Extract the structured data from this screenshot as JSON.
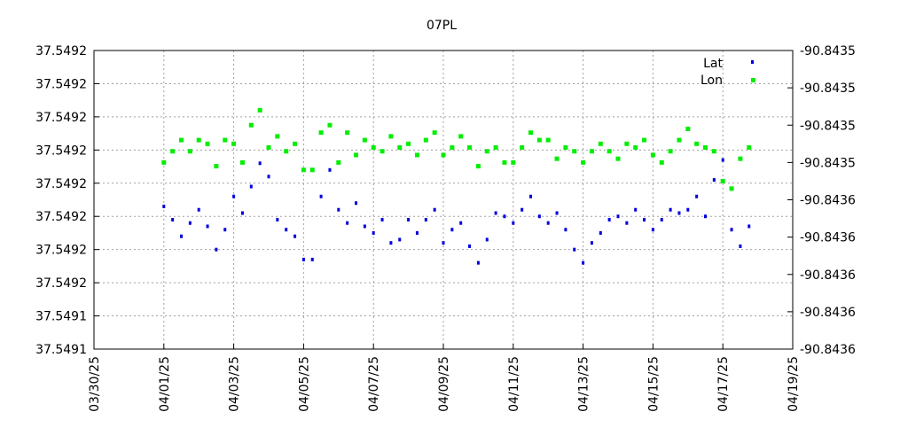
{
  "chart_data": {
    "type": "scatter",
    "title": "07PL",
    "xlabel": "",
    "ylabel": "",
    "x_tick_labels": [
      "03/30/25",
      "04/01/25",
      "04/03/25",
      "04/05/25",
      "04/07/25",
      "04/09/25",
      "04/11/25",
      "04/13/25",
      "04/15/25",
      "04/17/25",
      "04/19/25"
    ],
    "x_range": [
      "03/30/25",
      "04/19/25"
    ],
    "y_left_tick_labels": [
      "37.5491",
      "37.5491",
      "37.5492",
      "37.5492",
      "37.5492",
      "37.5492",
      "37.5492",
      "37.5492",
      "37.5492",
      "37.5492"
    ],
    "y_right_tick_labels": [
      "-90.8436",
      "-90.8436",
      "-90.8436",
      "-90.8436",
      "-90.8436",
      "-90.8435",
      "-90.8435",
      "-90.8435",
      "-90.8435"
    ],
    "y_left_range_index": [
      0,
      9
    ],
    "y_right_range_index": [
      0,
      8
    ],
    "grid": true,
    "legend_placement": "top-right",
    "series": [
      {
        "name": "Lat",
        "axis": "left",
        "color": "#0000e0",
        "points": [
          [
            "04/01/25 00:00",
            4.3
          ],
          [
            "04/01/25 06:00",
            3.9
          ],
          [
            "04/01/25 12:00",
            3.4
          ],
          [
            "04/01/25 18:00",
            3.8
          ],
          [
            "04/02/25 00:00",
            4.2
          ],
          [
            "04/02/25 06:00",
            3.7
          ],
          [
            "04/02/25 12:00",
            3.0
          ],
          [
            "04/02/25 18:00",
            3.6
          ],
          [
            "04/03/25 00:00",
            4.6
          ],
          [
            "04/03/25 06:00",
            4.1
          ],
          [
            "04/03/25 12:00",
            4.9
          ],
          [
            "04/03/25 18:00",
            5.6
          ],
          [
            "04/04/25 00:00",
            5.2
          ],
          [
            "04/04/25 06:00",
            3.9
          ],
          [
            "04/04/25 12:00",
            3.6
          ],
          [
            "04/04/25 18:00",
            3.4
          ],
          [
            "04/05/25 00:00",
            2.7
          ],
          [
            "04/05/25 06:00",
            2.7
          ],
          [
            "04/05/25 12:00",
            4.6
          ],
          [
            "04/05/25 18:00",
            5.4
          ],
          [
            "04/06/25 00:00",
            4.2
          ],
          [
            "04/06/25 06:00",
            3.8
          ],
          [
            "04/06/25 12:00",
            4.4
          ],
          [
            "04/06/25 18:00",
            3.7
          ],
          [
            "04/07/25 00:00",
            3.5
          ],
          [
            "04/07/25 06:00",
            3.9
          ],
          [
            "04/07/25 12:00",
            3.2
          ],
          [
            "04/07/25 18:00",
            3.3
          ],
          [
            "04/08/25 00:00",
            3.9
          ],
          [
            "04/08/25 06:00",
            3.5
          ],
          [
            "04/08/25 12:00",
            3.9
          ],
          [
            "04/08/25 18:00",
            4.2
          ],
          [
            "04/09/25 00:00",
            3.2
          ],
          [
            "04/09/25 06:00",
            3.6
          ],
          [
            "04/09/25 12:00",
            3.8
          ],
          [
            "04/09/25 18:00",
            3.1
          ],
          [
            "04/10/25 00:00",
            2.6
          ],
          [
            "04/10/25 06:00",
            3.3
          ],
          [
            "04/10/25 12:00",
            4.1
          ],
          [
            "04/10/25 18:00",
            4.0
          ],
          [
            "04/11/25 00:00",
            3.8
          ],
          [
            "04/11/25 06:00",
            4.2
          ],
          [
            "04/11/25 12:00",
            4.6
          ],
          [
            "04/11/25 18:00",
            4.0
          ],
          [
            "04/12/25 00:00",
            3.8
          ],
          [
            "04/12/25 06:00",
            4.1
          ],
          [
            "04/12/25 12:00",
            3.6
          ],
          [
            "04/12/25 18:00",
            3.0
          ],
          [
            "04/13/25 00:00",
            2.6
          ],
          [
            "04/13/25 06:00",
            3.2
          ],
          [
            "04/13/25 12:00",
            3.5
          ],
          [
            "04/13/25 18:00",
            3.9
          ],
          [
            "04/14/25 00:00",
            4.0
          ],
          [
            "04/14/25 06:00",
            3.8
          ],
          [
            "04/14/25 12:00",
            4.2
          ],
          [
            "04/14/25 18:00",
            3.9
          ],
          [
            "04/15/25 00:00",
            3.6
          ],
          [
            "04/15/25 06:00",
            3.9
          ],
          [
            "04/15/25 12:00",
            4.2
          ],
          [
            "04/15/25 18:00",
            4.1
          ],
          [
            "04/16/25 00:00",
            4.2
          ],
          [
            "04/16/25 06:00",
            4.6
          ],
          [
            "04/16/25 12:00",
            4.0
          ],
          [
            "04/16/25 18:00",
            5.1
          ],
          [
            "04/17/25 00:00",
            5.7
          ],
          [
            "04/17/25 06:00",
            3.6
          ],
          [
            "04/17/25 12:00",
            3.1
          ],
          [
            "04/17/25 18:00",
            3.7
          ]
        ]
      },
      {
        "name": "Lon",
        "axis": "right",
        "color": "#00ee00",
        "points": [
          [
            "04/01/25 00:00",
            5.0
          ],
          [
            "04/01/25 06:00",
            5.3
          ],
          [
            "04/01/25 12:00",
            5.6
          ],
          [
            "04/01/25 18:00",
            5.3
          ],
          [
            "04/02/25 00:00",
            5.6
          ],
          [
            "04/02/25 06:00",
            5.5
          ],
          [
            "04/02/25 12:00",
            4.9
          ],
          [
            "04/02/25 18:00",
            5.6
          ],
          [
            "04/03/25 00:00",
            5.5
          ],
          [
            "04/03/25 06:00",
            5.0
          ],
          [
            "04/03/25 12:00",
            6.0
          ],
          [
            "04/03/25 18:00",
            6.4
          ],
          [
            "04/04/25 00:00",
            5.4
          ],
          [
            "04/04/25 06:00",
            5.7
          ],
          [
            "04/04/25 12:00",
            5.3
          ],
          [
            "04/04/25 18:00",
            5.5
          ],
          [
            "04/05/25 00:00",
            4.8
          ],
          [
            "04/05/25 06:00",
            4.8
          ],
          [
            "04/05/25 12:00",
            5.8
          ],
          [
            "04/05/25 18:00",
            6.0
          ],
          [
            "04/06/25 00:00",
            5.0
          ],
          [
            "04/06/25 06:00",
            5.8
          ],
          [
            "04/06/25 12:00",
            5.2
          ],
          [
            "04/06/25 18:00",
            5.6
          ],
          [
            "04/07/25 00:00",
            5.4
          ],
          [
            "04/07/25 06:00",
            5.3
          ],
          [
            "04/07/25 12:00",
            5.7
          ],
          [
            "04/07/25 18:00",
            5.4
          ],
          [
            "04/08/25 00:00",
            5.5
          ],
          [
            "04/08/25 06:00",
            5.2
          ],
          [
            "04/08/25 12:00",
            5.6
          ],
          [
            "04/08/25 18:00",
            5.8
          ],
          [
            "04/09/25 00:00",
            5.2
          ],
          [
            "04/09/25 06:00",
            5.4
          ],
          [
            "04/09/25 12:00",
            5.7
          ],
          [
            "04/09/25 18:00",
            5.4
          ],
          [
            "04/10/25 00:00",
            4.9
          ],
          [
            "04/10/25 06:00",
            5.3
          ],
          [
            "04/10/25 12:00",
            5.4
          ],
          [
            "04/10/25 18:00",
            5.0
          ],
          [
            "04/11/25 00:00",
            5.0
          ],
          [
            "04/11/25 06:00",
            5.4
          ],
          [
            "04/11/25 12:00",
            5.8
          ],
          [
            "04/11/25 18:00",
            5.6
          ],
          [
            "04/12/25 00:00",
            5.6
          ],
          [
            "04/12/25 06:00",
            5.1
          ],
          [
            "04/12/25 12:00",
            5.4
          ],
          [
            "04/12/25 18:00",
            5.3
          ],
          [
            "04/13/25 00:00",
            5.0
          ],
          [
            "04/13/25 06:00",
            5.3
          ],
          [
            "04/13/25 12:00",
            5.5
          ],
          [
            "04/13/25 18:00",
            5.3
          ],
          [
            "04/14/25 00:00",
            5.1
          ],
          [
            "04/14/25 06:00",
            5.5
          ],
          [
            "04/14/25 12:00",
            5.4
          ],
          [
            "04/14/25 18:00",
            5.6
          ],
          [
            "04/15/25 00:00",
            5.2
          ],
          [
            "04/15/25 06:00",
            5.0
          ],
          [
            "04/15/25 12:00",
            5.3
          ],
          [
            "04/15/25 18:00",
            5.6
          ],
          [
            "04/16/25 00:00",
            5.9
          ],
          [
            "04/16/25 06:00",
            5.5
          ],
          [
            "04/16/25 12:00",
            5.4
          ],
          [
            "04/16/25 18:00",
            5.3
          ],
          [
            "04/17/25 00:00",
            4.5
          ],
          [
            "04/17/25 06:00",
            4.3
          ],
          [
            "04/17/25 12:00",
            5.1
          ],
          [
            "04/17/25 18:00",
            5.4
          ]
        ]
      }
    ]
  },
  "legend": {
    "lat_label": "Lat",
    "lon_label": "Lon"
  }
}
